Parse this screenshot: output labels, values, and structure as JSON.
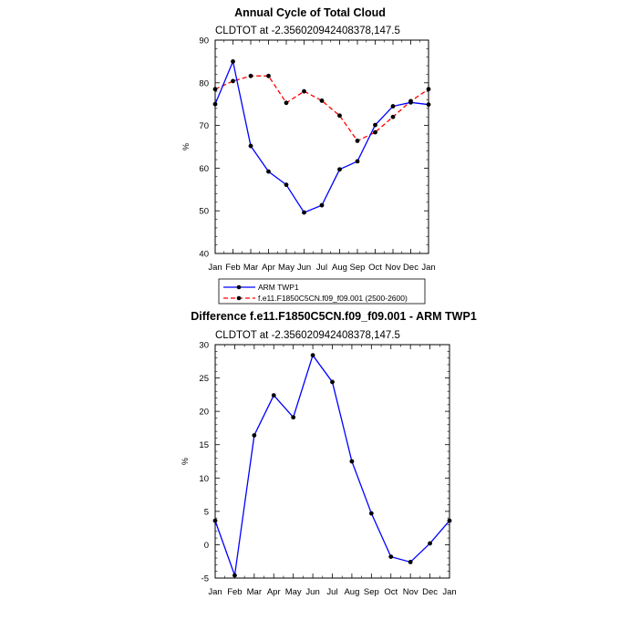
{
  "chart_data": [
    {
      "type": "line",
      "title": "Annual Cycle of Total Cloud",
      "subtitle": "CLDTOT at -2.356020942408378,147.5",
      "xlabel": "",
      "ylabel": "%",
      "categories": [
        "Jan",
        "Feb",
        "Mar",
        "Apr",
        "May",
        "Jun",
        "Jul",
        "Aug",
        "Sep",
        "Oct",
        "Nov",
        "Dec",
        "Jan"
      ],
      "ylim": [
        40,
        90
      ],
      "yticks": [
        "40",
        "50",
        "60",
        "70",
        "80",
        "90"
      ],
      "legend_position": "bottom",
      "series": [
        {
          "name": "ARM TWP1",
          "color": "#0000ff",
          "dash": "solid",
          "values": [
            75,
            85,
            65.2,
            59.2,
            56.1,
            49.6,
            51.3,
            59.7,
            61.6,
            70.1,
            74.5,
            75.4,
            74.9
          ]
        },
        {
          "name": "f.e11.F1850C5CN.f09_f09.001 (2500-2600)",
          "color": "#ff0000",
          "dash": "dashed",
          "values": [
            78.5,
            80.4,
            81.6,
            81.6,
            75.3,
            78,
            75.8,
            72.3,
            66.4,
            68.4,
            72,
            75.7,
            78.5
          ]
        }
      ]
    },
    {
      "type": "line",
      "title": "Difference f.e11.F1850C5CN.f09_f09.001 - ARM TWP1",
      "subtitle": "CLDTOT at -2.356020942408378,147.5",
      "xlabel": "",
      "ylabel": "%",
      "categories": [
        "Jan",
        "Feb",
        "Mar",
        "Apr",
        "May",
        "Jun",
        "Jul",
        "Aug",
        "Sep",
        "Oct",
        "Nov",
        "Dec",
        "Jan"
      ],
      "ylim": [
        -5,
        30
      ],
      "yticks": [
        "-5",
        "0",
        "5",
        "10",
        "15",
        "20",
        "25",
        "30"
      ],
      "series": [
        {
          "name": "Difference",
          "color": "#0000ff",
          "dash": "solid",
          "values": [
            3.6,
            -4.6,
            16.4,
            22.4,
            19.1,
            28.4,
            24.4,
            12.5,
            4.7,
            -1.8,
            -2.6,
            0.2,
            3.6
          ]
        }
      ]
    }
  ]
}
